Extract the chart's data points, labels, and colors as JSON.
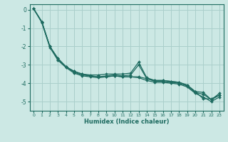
{
  "xlabel": "Humidex (Indice chaleur)",
  "background_color": "#cce8e4",
  "grid_color": "#aacfcb",
  "line_color": "#1e6b60",
  "xlim": [
    -0.5,
    23.5
  ],
  "ylim": [
    -5.5,
    0.3
  ],
  "xticks": [
    0,
    1,
    2,
    3,
    4,
    5,
    6,
    7,
    8,
    9,
    10,
    11,
    12,
    13,
    14,
    15,
    16,
    17,
    18,
    19,
    20,
    21,
    22,
    23
  ],
  "yticks": [
    0,
    -1,
    -2,
    -3,
    -4,
    -5
  ],
  "series": [
    [
      0.05,
      -0.65,
      -2.0,
      -2.65,
      -3.1,
      -3.35,
      -3.5,
      -3.55,
      -3.55,
      -3.5,
      -3.5,
      -3.5,
      -3.45,
      -2.85,
      -3.7,
      -3.85,
      -3.85,
      -3.9,
      -3.95,
      -4.1,
      -4.45,
      -4.85,
      -4.85,
      -4.65
    ],
    [
      0.05,
      -0.65,
      -2.0,
      -2.65,
      -3.1,
      -3.35,
      -3.5,
      -3.6,
      -3.65,
      -3.65,
      -3.6,
      -3.65,
      -3.65,
      -3.65,
      -3.75,
      -3.85,
      -3.85,
      -3.9,
      -3.95,
      -4.1,
      -4.45,
      -4.5,
      -4.9,
      -4.55
    ],
    [
      0.05,
      -0.65,
      -2.0,
      -2.7,
      -3.1,
      -3.4,
      -3.55,
      -3.6,
      -3.65,
      -3.6,
      -3.55,
      -3.6,
      -3.55,
      -3.0,
      -3.75,
      -3.9,
      -3.9,
      -3.95,
      -4.0,
      -4.15,
      -4.5,
      -4.6,
      -4.9,
      -4.65
    ],
    [
      0.05,
      -0.7,
      -2.05,
      -2.75,
      -3.15,
      -3.45,
      -3.6,
      -3.65,
      -3.7,
      -3.65,
      -3.6,
      -3.65,
      -3.65,
      -3.7,
      -3.85,
      -3.95,
      -3.95,
      -4.0,
      -4.05,
      -4.2,
      -4.55,
      -4.75,
      -5.0,
      -4.75
    ]
  ]
}
